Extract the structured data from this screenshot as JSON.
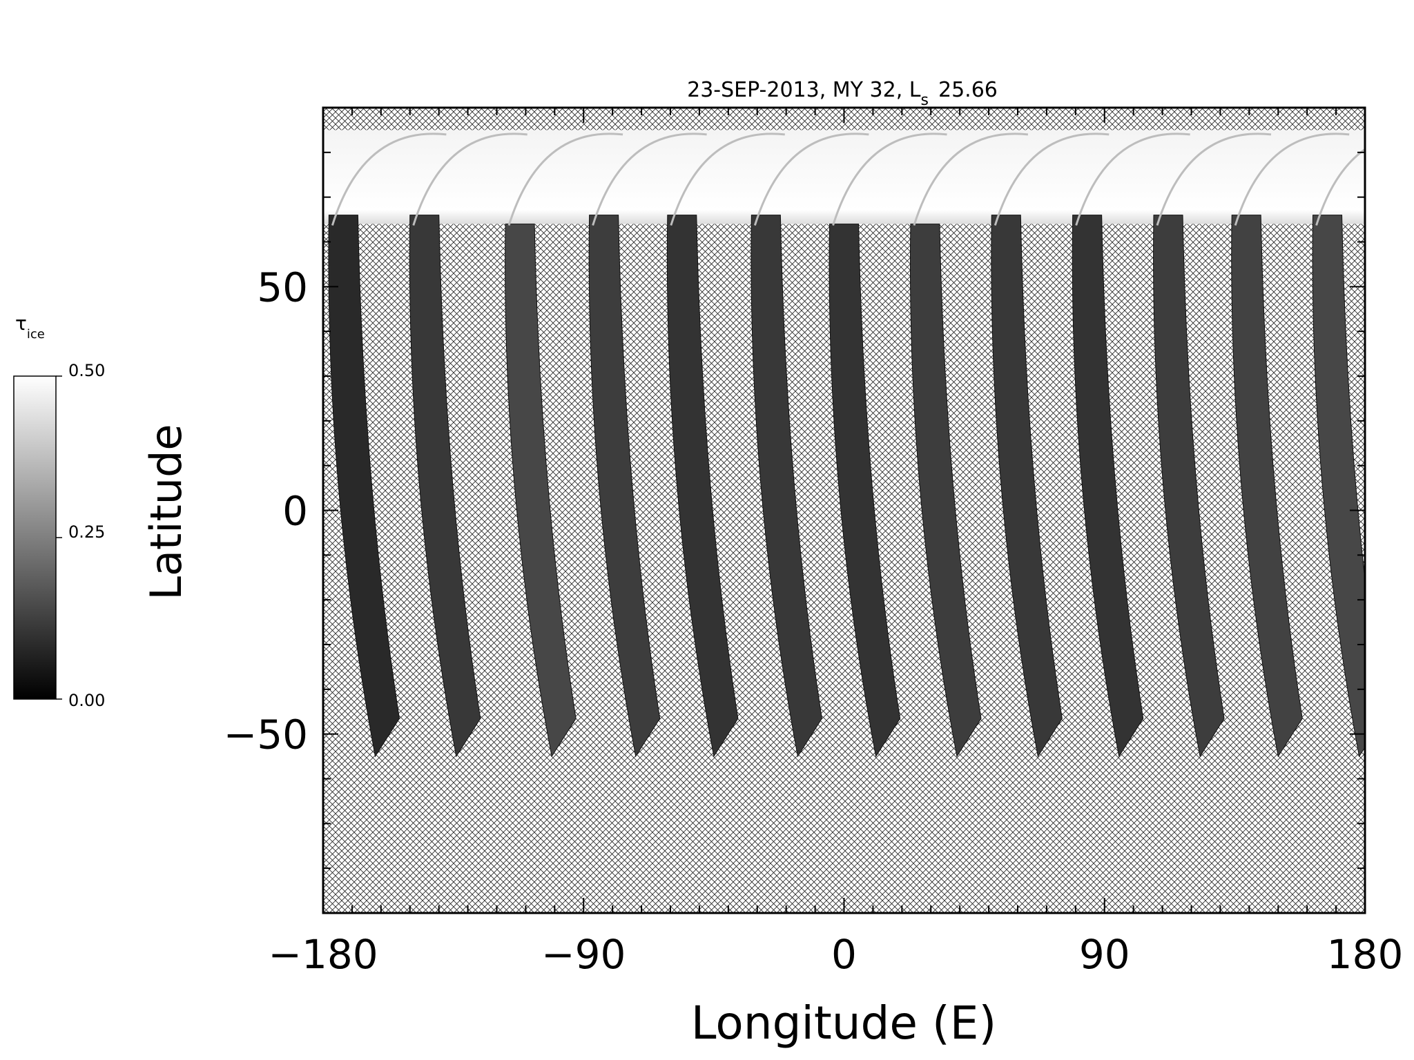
{
  "chart_data": {
    "type": "heatmap",
    "title": "23-SEP-2013, MY 32,  L",
    "title_subscript": "s",
    "title_value": "25.66",
    "xlabel": "Longitude (E)",
    "ylabel": "Latitude",
    "xlim": [
      -180,
      180
    ],
    "ylim": [
      -90,
      90
    ],
    "x_ticks": [
      -180,
      -90,
      0,
      90,
      180
    ],
    "x_tick_labels": [
      "−180",
      "−90",
      "0",
      "90",
      "180"
    ],
    "y_ticks": [
      -50,
      0,
      50
    ],
    "y_tick_labels": [
      "−50",
      "0",
      "50"
    ],
    "no_data_pattern": "cross-hatch",
    "north_cap": {
      "lat_min": 64,
      "lat_max": 85,
      "value": 0.5
    },
    "swaths": [
      {
        "lon_top": -178,
        "lon_bottom": -162,
        "lat_top": 66,
        "lat_bottom": -55,
        "value": 0.08
      },
      {
        "lon_top": -150,
        "lon_bottom": -134,
        "lat_top": 66,
        "lat_bottom": -55,
        "value": 0.11
      },
      {
        "lon_top": -117,
        "lon_bottom": -101,
        "lat_top": 64,
        "lat_bottom": -55,
        "value": 0.14
      },
      {
        "lon_top": -88,
        "lon_bottom": -72,
        "lat_top": 66,
        "lat_bottom": -55,
        "value": 0.12
      },
      {
        "lon_top": -61,
        "lon_bottom": -45,
        "lat_top": 66,
        "lat_bottom": -55,
        "value": 0.1
      },
      {
        "lon_top": -32,
        "lon_bottom": -16,
        "lat_top": 66,
        "lat_bottom": -55,
        "value": 0.11
      },
      {
        "lon_top": -5,
        "lon_bottom": 11,
        "lat_top": 64,
        "lat_bottom": -55,
        "value": 0.1
      },
      {
        "lon_top": 23,
        "lon_bottom": 39,
        "lat_top": 64,
        "lat_bottom": -55,
        "value": 0.12
      },
      {
        "lon_top": 51,
        "lon_bottom": 67,
        "lat_top": 66,
        "lat_bottom": -55,
        "value": 0.11
      },
      {
        "lon_top": 79,
        "lon_bottom": 95,
        "lat_top": 66,
        "lat_bottom": -55,
        "value": 0.1
      },
      {
        "lon_top": 107,
        "lon_bottom": 123,
        "lat_top": 66,
        "lat_bottom": -55,
        "value": 0.12
      },
      {
        "lon_top": 134,
        "lon_bottom": 150,
        "lat_top": 66,
        "lat_bottom": -55,
        "value": 0.13
      },
      {
        "lon_top": 162,
        "lon_bottom": 178,
        "lat_top": 66,
        "lat_bottom": -55,
        "value": 0.14
      }
    ],
    "colorbar": {
      "label": "τ",
      "label_subscript": "ice",
      "range": [
        0.0,
        0.5
      ],
      "ticks": [
        0.0,
        0.25,
        0.5
      ],
      "tick_labels": [
        "0.00",
        "0.25",
        "0.50"
      ],
      "colormap": "grayscale"
    },
    "grid": false
  }
}
